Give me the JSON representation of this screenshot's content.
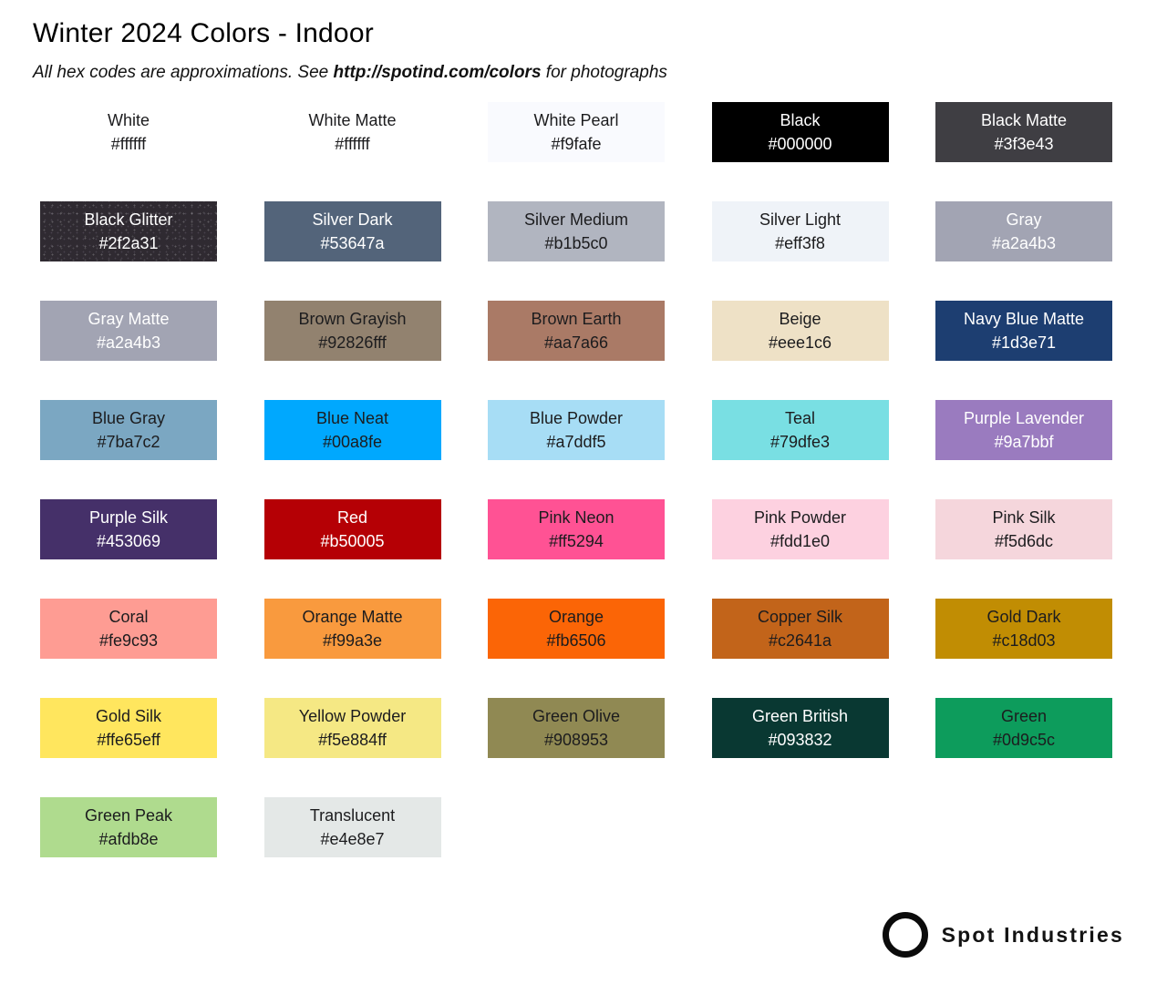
{
  "header": {
    "title": "Winter 2024 Colors - Indoor",
    "subtitle": {
      "prefix": "All hex codes are approximations. See ",
      "link": "http://spotind.com/colors",
      "suffix": " for photographs"
    }
  },
  "colors": {
    "page_bg": "#ffffff",
    "dark_text": "#1c1c1e",
    "light_text": "#ffffff"
  },
  "palette": {
    "columns": 5,
    "swatches": [
      {
        "name": "White",
        "hex": "#ffffff",
        "css": "#ffffff",
        "text": "dark"
      },
      {
        "name": "White Matte",
        "hex": "#ffffff",
        "css": "#ffffff",
        "text": "dark"
      },
      {
        "name": "White Pearl",
        "hex": "#f9fafe",
        "css": "#f9fafe",
        "text": "dark"
      },
      {
        "name": "Black",
        "hex": "#000000",
        "css": "#000000",
        "text": "light"
      },
      {
        "name": "Black Matte",
        "hex": "#3f3e43",
        "css": "#3f3e43",
        "text": "light"
      },
      {
        "name": "Black Glitter",
        "hex": "#2f2a31",
        "css": "#2f2a31",
        "text": "light",
        "glitter": true
      },
      {
        "name": "Silver Dark",
        "hex": "#53647a",
        "css": "#53647a",
        "text": "light"
      },
      {
        "name": "Silver Medium",
        "hex": "#b1b5c0",
        "css": "#b1b5c0",
        "text": "dark"
      },
      {
        "name": "Silver Light",
        "hex": "#eff3f8",
        "css": "#eff3f8",
        "text": "dark"
      },
      {
        "name": "Gray",
        "hex": "#a2a4b3",
        "css": "#a2a4b3",
        "text": "light"
      },
      {
        "name": "Gray Matte",
        "hex": "#a2a4b3",
        "css": "#a2a4b3",
        "text": "light"
      },
      {
        "name": "Brown Grayish",
        "hex": "#92826fff",
        "css": "#92826f",
        "text": "dark"
      },
      {
        "name": "Brown Earth",
        "hex": "#aa7a66",
        "css": "#aa7a66",
        "text": "dark"
      },
      {
        "name": "Beige",
        "hex": "#eee1c6",
        "css": "#eee1c6",
        "text": "dark"
      },
      {
        "name": "Navy Blue Matte",
        "hex": "#1d3e71",
        "css": "#1d3e71",
        "text": "light"
      },
      {
        "name": "Blue Gray",
        "hex": "#7ba7c2",
        "css": "#7ba7c2",
        "text": "dark"
      },
      {
        "name": "Blue Neat",
        "hex": "#00a8fe",
        "css": "#00a8fe",
        "text": "dark"
      },
      {
        "name": "Blue Powder",
        "hex": "#a7ddf5",
        "css": "#a7ddf5",
        "text": "dark"
      },
      {
        "name": "Teal",
        "hex": "#79dfe3",
        "css": "#79dfe3",
        "text": "dark"
      },
      {
        "name": "Purple Lavender",
        "hex": "#9a7bbf",
        "css": "#9a7bbf",
        "text": "light"
      },
      {
        "name": "Purple Silk",
        "hex": "#453069",
        "css": "#453069",
        "text": "light"
      },
      {
        "name": "Red",
        "hex": "#b50005",
        "css": "#b50005",
        "text": "light"
      },
      {
        "name": "Pink Neon",
        "hex": "#ff5294",
        "css": "#ff5294",
        "text": "dark"
      },
      {
        "name": "Pink Powder",
        "hex": "#fdd1e0",
        "css": "#fdd1e0",
        "text": "dark"
      },
      {
        "name": "Pink Silk",
        "hex": "#f5d6dc",
        "css": "#f5d6dc",
        "text": "dark"
      },
      {
        "name": "Coral",
        "hex": "#fe9c93",
        "css": "#fe9c93",
        "text": "dark"
      },
      {
        "name": "Orange Matte",
        "hex": "#f99a3e",
        "css": "#f99a3e",
        "text": "dark"
      },
      {
        "name": "Orange",
        "hex": "#fb6506",
        "css": "#fb6506",
        "text": "dark"
      },
      {
        "name": "Copper Silk",
        "hex": "#c2641a",
        "css": "#c2641a",
        "text": "dark"
      },
      {
        "name": "Gold Dark",
        "hex": "#c18d03",
        "css": "#c18d03",
        "text": "dark"
      },
      {
        "name": "Gold Silk",
        "hex": "#ffe65eff",
        "css": "#ffe65e",
        "text": "dark"
      },
      {
        "name": "Yellow Powder",
        "hex": "#f5e884ff",
        "css": "#f5e884",
        "text": "dark"
      },
      {
        "name": "Green Olive",
        "hex": "#908953",
        "css": "#908953",
        "text": "dark"
      },
      {
        "name": "Green British",
        "hex": "#093832",
        "css": "#093832",
        "text": "light"
      },
      {
        "name": "Green",
        "hex": "#0d9c5c",
        "css": "#0d9c5c",
        "text": "dark"
      },
      {
        "name": "Green Peak",
        "hex": "#afdb8e",
        "css": "#afdb8e",
        "text": "dark"
      },
      {
        "name": "Translucent",
        "hex": "#e4e8e7",
        "css": "#e4e8e7",
        "text": "dark"
      }
    ]
  },
  "footer": {
    "brand": "Spot Industries",
    "logo_icon": "ring-icon",
    "logo_color": "#0b0b0b"
  }
}
